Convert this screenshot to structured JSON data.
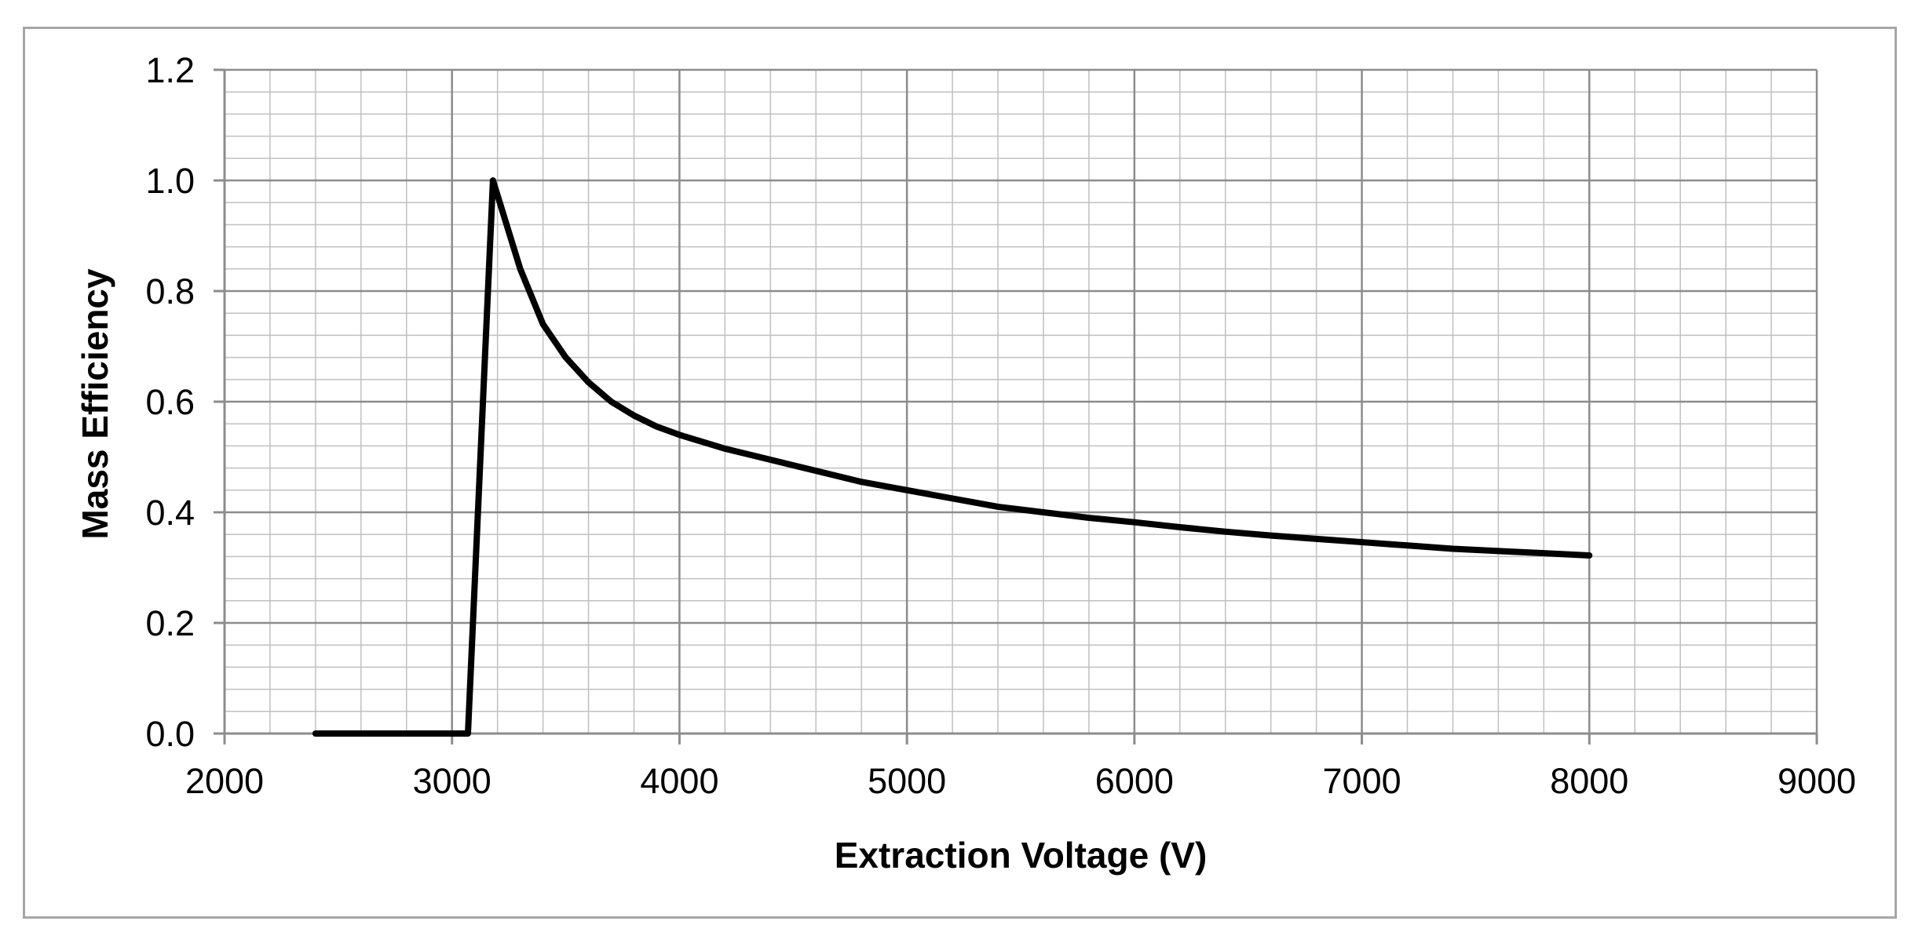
{
  "chart_data": {
    "type": "line",
    "title": "",
    "xlabel": "Extraction Voltage (V)",
    "ylabel": "Mass Efficiency",
    "xlim": [
      2000,
      9000
    ],
    "ylim": [
      0,
      1.2
    ],
    "x_ticks": [
      2000,
      3000,
      4000,
      5000,
      6000,
      7000,
      8000,
      9000
    ],
    "y_ticks": [
      0.0,
      0.2,
      0.4,
      0.6,
      0.8,
      1.0,
      1.2
    ],
    "x_tick_labels": [
      "2000",
      "3000",
      "4000",
      "5000",
      "6000",
      "7000",
      "8000",
      "9000"
    ],
    "y_tick_labels": [
      "0.0",
      "0.2",
      "0.4",
      "0.6",
      "0.8",
      "1.0",
      "1.2"
    ],
    "grid": {
      "major": true,
      "minor": true,
      "x_minor_step": 200,
      "y_minor_step": 0.04
    },
    "legend": "none",
    "line_color": "#000000",
    "grid_color": "#c0c0c0",
    "major_grid_color": "#8c8c8c",
    "series": [
      {
        "x": [
          2400,
          2500,
          2600,
          2700,
          2800,
          2900,
          3000,
          3070,
          3180,
          3300,
          3400,
          3500,
          3600,
          3700,
          3800,
          3900,
          4000,
          4200,
          4400,
          4600,
          4800,
          5000,
          5200,
          5400,
          5600,
          5800,
          6000,
          6200,
          6400,
          6600,
          6800,
          7000,
          7200,
          7400,
          7600,
          7800,
          8000
        ],
        "values": [
          0.0,
          0.0,
          0.0,
          0.0,
          0.0,
          0.0,
          0.0,
          0.0,
          1.0,
          0.84,
          0.74,
          0.68,
          0.635,
          0.6,
          0.575,
          0.555,
          0.54,
          0.515,
          0.495,
          0.475,
          0.455,
          0.44,
          0.425,
          0.41,
          0.4,
          0.39,
          0.382,
          0.373,
          0.365,
          0.358,
          0.352,
          0.346,
          0.34,
          0.334,
          0.33,
          0.326,
          0.322
        ]
      }
    ]
  }
}
